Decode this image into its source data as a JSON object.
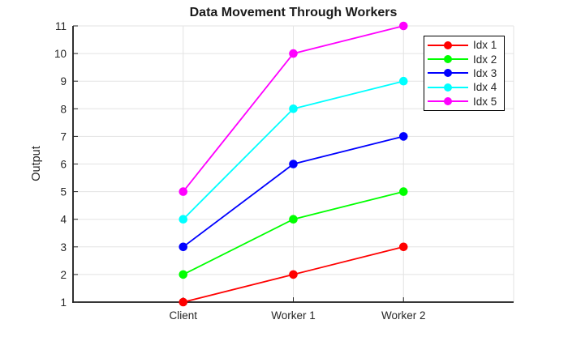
{
  "chart_data": {
    "type": "line",
    "title": "Data Movement Through Workers",
    "xlabel": "",
    "ylabel": "Output",
    "categories": [
      "Client",
      "Worker 1",
      "Worker 2"
    ],
    "category_x": [
      1,
      2,
      3
    ],
    "xlim": [
      0,
      4
    ],
    "ylim": [
      1,
      11
    ],
    "yticks": [
      "1",
      "2",
      "3",
      "4",
      "5",
      "6",
      "7",
      "8",
      "9",
      "10",
      "11"
    ],
    "ytick_values": [
      1,
      2,
      3,
      4,
      5,
      6,
      7,
      8,
      9,
      10,
      11
    ],
    "grid": true,
    "legend_position": "top-right-inside",
    "marker": "circle",
    "series": [
      {
        "name": "Idx 1",
        "color": "#FF0000",
        "values": [
          1,
          2,
          3
        ]
      },
      {
        "name": "Idx 2",
        "color": "#00FF00",
        "values": [
          2,
          4,
          5
        ]
      },
      {
        "name": "Idx 3",
        "color": "#0000FF",
        "values": [
          3,
          6,
          7
        ]
      },
      {
        "name": "Idx 4",
        "color": "#00FFFF",
        "values": [
          4,
          8,
          9
        ]
      },
      {
        "name": "Idx 5",
        "color": "#FF00FF",
        "values": [
          5,
          10,
          11
        ]
      }
    ],
    "colors": {
      "background": "#FFFFFF",
      "grid": "#E3E3E3",
      "box_edge": "#E3E3E3",
      "axis": "#1A1A1A",
      "tick": "#262626",
      "text": "#262626",
      "title": "#1A1A1A",
      "legend_border": "#000000",
      "legend_bg": "#FFFFFF"
    }
  }
}
